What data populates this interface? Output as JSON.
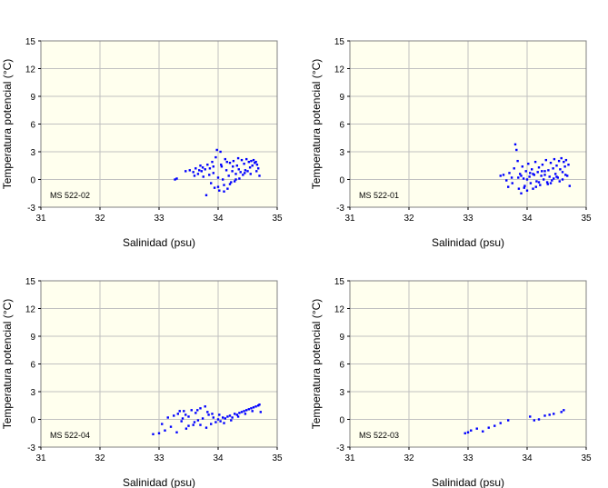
{
  "chart_data": [
    {
      "type": "scatter",
      "label": "MS 522-02",
      "xlabel": "Salinidad (psu)",
      "ylabel": "Temperatura potencial (°C)",
      "xlim": [
        31,
        35
      ],
      "ylim": [
        -3,
        15
      ],
      "xticks": [
        "31",
        "32",
        "33",
        "34",
        "35"
      ],
      "yticks": [
        "15",
        "12",
        "9",
        "6",
        "3",
        "0",
        "-3"
      ],
      "grid": true,
      "color": "#0000ff",
      "points": [
        [
          33.27,
          0.0
        ],
        [
          33.3,
          0.1
        ],
        [
          33.45,
          0.9
        ],
        [
          33.52,
          1.0
        ],
        [
          33.58,
          0.8
        ],
        [
          33.62,
          1.2
        ],
        [
          33.66,
          0.6
        ],
        [
          33.7,
          1.5
        ],
        [
          33.72,
          0.9
        ],
        [
          33.75,
          0.3
        ],
        [
          33.78,
          1.1
        ],
        [
          33.8,
          -1.7
        ],
        [
          33.82,
          1.6
        ],
        [
          33.85,
          0.5
        ],
        [
          33.88,
          -0.4
        ],
        [
          33.9,
          1.9
        ],
        [
          33.92,
          0.7
        ],
        [
          33.94,
          -0.9
        ],
        [
          33.96,
          2.4
        ],
        [
          33.98,
          3.2
        ],
        [
          34.0,
          0.2
        ],
        [
          34.02,
          -1.2
        ],
        [
          34.04,
          3.0
        ],
        [
          34.06,
          1.4
        ],
        [
          34.08,
          0.0
        ],
        [
          34.1,
          -0.6
        ],
        [
          34.12,
          2.2
        ],
        [
          34.14,
          1.0
        ],
        [
          34.16,
          -1.0
        ],
        [
          34.18,
          0.4
        ],
        [
          34.2,
          1.8
        ],
        [
          34.22,
          -0.3
        ],
        [
          34.24,
          0.9
        ],
        [
          34.26,
          2.0
        ],
        [
          34.28,
          -0.2
        ],
        [
          34.3,
          0.6
        ],
        [
          34.32,
          1.5
        ],
        [
          34.34,
          2.3
        ],
        [
          34.36,
          0.1
        ],
        [
          34.38,
          0.8
        ],
        [
          34.4,
          2.1
        ],
        [
          34.42,
          0.5
        ],
        [
          34.44,
          1.7
        ],
        [
          34.46,
          1.0
        ],
        [
          34.48,
          2.2
        ],
        [
          34.5,
          0.9
        ],
        [
          34.52,
          1.9
        ],
        [
          34.54,
          1.3
        ],
        [
          34.56,
          2.0
        ],
        [
          34.58,
          1.5
        ],
        [
          34.6,
          2.1
        ],
        [
          34.62,
          1.8
        ],
        [
          34.64,
          1.9
        ],
        [
          34.66,
          1.6
        ],
        [
          34.68,
          1.2
        ],
        [
          34.7,
          0.4
        ],
        [
          33.6,
          0.4
        ],
        [
          33.68,
          1.0
        ],
        [
          33.74,
          1.3
        ],
        [
          33.86,
          1.2
        ],
        [
          33.92,
          1.4
        ],
        [
          34.05,
          1.6
        ],
        [
          34.15,
          1.9
        ],
        [
          34.25,
          1.4
        ],
        [
          34.35,
          1.1
        ],
        [
          34.45,
          0.7
        ],
        [
          34.55,
          0.6
        ],
        [
          34.65,
          0.9
        ],
        [
          34.0,
          -0.8
        ],
        [
          34.1,
          -1.3
        ],
        [
          34.2,
          -0.5
        ],
        [
          34.3,
          0.0
        ]
      ]
    },
    {
      "type": "scatter",
      "label": "MS 522-01",
      "xlabel": "Salinidad (psu)",
      "ylabel": "Temperatura potencial (°C)",
      "xlim": [
        31,
        35
      ],
      "ylim": [
        -3,
        15
      ],
      "xticks": [
        "31",
        "32",
        "33",
        "34",
        "35"
      ],
      "yticks": [
        "15",
        "12",
        "9",
        "6",
        "3",
        "0",
        "-3"
      ],
      "grid": true,
      "color": "#0000ff",
      "points": [
        [
          33.55,
          0.4
        ],
        [
          33.6,
          0.5
        ],
        [
          33.65,
          -0.1
        ],
        [
          33.68,
          -0.8
        ],
        [
          33.7,
          0.7
        ],
        [
          33.74,
          0.2
        ],
        [
          33.78,
          1.2
        ],
        [
          33.8,
          3.8
        ],
        [
          33.82,
          3.2
        ],
        [
          33.84,
          2.0
        ],
        [
          33.86,
          -1.0
        ],
        [
          33.88,
          0.6
        ],
        [
          33.9,
          -1.5
        ],
        [
          33.92,
          1.4
        ],
        [
          33.94,
          0.1
        ],
        [
          33.96,
          -0.7
        ],
        [
          33.98,
          0.9
        ],
        [
          34.0,
          -1.2
        ],
        [
          34.02,
          1.7
        ],
        [
          34.04,
          0.3
        ],
        [
          34.06,
          -0.4
        ],
        [
          34.08,
          1.1
        ],
        [
          34.1,
          -1.0
        ],
        [
          34.12,
          0.5
        ],
        [
          34.14,
          1.9
        ],
        [
          34.16,
          -0.2
        ],
        [
          34.18,
          0.8
        ],
        [
          34.2,
          1.3
        ],
        [
          34.22,
          -0.6
        ],
        [
          34.24,
          0.4
        ],
        [
          34.26,
          1.6
        ],
        [
          34.28,
          0.0
        ],
        [
          34.3,
          0.9
        ],
        [
          34.32,
          2.1
        ],
        [
          34.34,
          -0.3
        ],
        [
          34.36,
          1.0
        ],
        [
          34.38,
          0.3
        ],
        [
          34.4,
          1.8
        ],
        [
          34.42,
          -0.1
        ],
        [
          34.44,
          1.2
        ],
        [
          34.46,
          2.2
        ],
        [
          34.48,
          0.6
        ],
        [
          34.5,
          1.5
        ],
        [
          34.52,
          0.2
        ],
        [
          34.54,
          2.0
        ],
        [
          34.56,
          1.1
        ],
        [
          34.58,
          2.3
        ],
        [
          34.6,
          0.8
        ],
        [
          34.62,
          1.9
        ],
        [
          34.64,
          1.4
        ],
        [
          34.66,
          2.1
        ],
        [
          34.68,
          0.4
        ],
        [
          34.7,
          1.6
        ],
        [
          34.72,
          -0.7
        ],
        [
          33.75,
          -0.4
        ],
        [
          33.85,
          0.2
        ],
        [
          33.95,
          -0.9
        ],
        [
          34.05,
          0.7
        ],
        [
          34.15,
          -0.8
        ],
        [
          34.25,
          0.9
        ],
        [
          34.35,
          -0.5
        ],
        [
          34.45,
          0.1
        ],
        [
          34.55,
          -0.2
        ],
        [
          34.65,
          0.5
        ],
        [
          33.9,
          0.4
        ],
        [
          34.0,
          0.0
        ],
        [
          34.1,
          0.6
        ],
        [
          34.2,
          -0.3
        ],
        [
          34.3,
          0.5
        ],
        [
          34.4,
          -0.4
        ],
        [
          34.5,
          0.3
        ],
        [
          34.6,
          0.0
        ]
      ]
    },
    {
      "type": "scatter",
      "label": "MS 522-04",
      "xlabel": "Salinidad (psu)",
      "ylabel": "Temperatura potencial (°C)",
      "xlim": [
        31,
        35
      ],
      "ylim": [
        -3,
        15
      ],
      "xticks": [
        "31",
        "32",
        "33",
        "34",
        "35"
      ],
      "yticks": [
        "15",
        "12",
        "9",
        "6",
        "3",
        "0",
        "-3"
      ],
      "grid": true,
      "color": "#0000ff",
      "points": [
        [
          32.9,
          -1.6
        ],
        [
          33.0,
          -1.5
        ],
        [
          33.05,
          -0.5
        ],
        [
          33.1,
          -1.2
        ],
        [
          33.15,
          0.2
        ],
        [
          33.2,
          -0.8
        ],
        [
          33.25,
          0.4
        ],
        [
          33.3,
          -1.4
        ],
        [
          33.32,
          0.6
        ],
        [
          33.38,
          -0.2
        ],
        [
          33.42,
          0.9
        ],
        [
          33.46,
          -1.0
        ],
        [
          33.5,
          0.3
        ],
        [
          33.55,
          1.0
        ],
        [
          33.58,
          -0.6
        ],
        [
          33.62,
          0.7
        ],
        [
          33.66,
          -0.1
        ],
        [
          33.7,
          1.2
        ],
        [
          33.74,
          0.1
        ],
        [
          33.78,
          1.4
        ],
        [
          33.8,
          -0.9
        ],
        [
          33.84,
          0.5
        ],
        [
          33.88,
          -0.5
        ],
        [
          33.92,
          0.2
        ],
        [
          33.96,
          -0.3
        ],
        [
          34.0,
          0.0
        ],
        [
          34.04,
          -0.2
        ],
        [
          34.08,
          0.2
        ],
        [
          34.12,
          0.1
        ],
        [
          34.16,
          0.3
        ],
        [
          34.2,
          0.4
        ],
        [
          34.24,
          0.2
        ],
        [
          34.28,
          0.6
        ],
        [
          34.32,
          0.5
        ],
        [
          34.36,
          0.7
        ],
        [
          34.4,
          0.8
        ],
        [
          34.44,
          0.9
        ],
        [
          34.48,
          1.0
        ],
        [
          34.52,
          1.1
        ],
        [
          34.56,
          1.2
        ],
        [
          34.6,
          1.3
        ],
        [
          34.64,
          1.4
        ],
        [
          34.68,
          1.5
        ],
        [
          34.7,
          1.6
        ],
        [
          34.72,
          0.8
        ],
        [
          33.4,
          0.1
        ],
        [
          33.5,
          -0.7
        ],
        [
          33.6,
          -0.3
        ],
        [
          33.7,
          -0.6
        ],
        [
          33.82,
          0.8
        ],
        [
          33.9,
          0.6
        ],
        [
          34.02,
          0.5
        ],
        [
          34.1,
          -0.4
        ],
        [
          33.35,
          0.9
        ],
        [
          33.45,
          0.5
        ],
        [
          33.65,
          1.0
        ],
        [
          34.22,
          -0.1
        ],
        [
          34.34,
          0.3
        ],
        [
          34.46,
          0.6
        ],
        [
          34.58,
          0.9
        ]
      ]
    },
    {
      "type": "scatter",
      "label": "MS 522-03",
      "xlabel": "Salinidad (psu)",
      "ylabel": "Temperatura potencial (°C)",
      "xlim": [
        31,
        35
      ],
      "ylim": [
        -3,
        15
      ],
      "xticks": [
        "31",
        "32",
        "33",
        "34",
        "35"
      ],
      "yticks": [
        "15",
        "12",
        "9",
        "6",
        "3",
        "0",
        "-3"
      ],
      "grid": true,
      "color": "#0000ff",
      "points": [
        [
          32.95,
          -1.5
        ],
        [
          33.0,
          -1.4
        ],
        [
          33.05,
          -1.2
        ],
        [
          33.15,
          -1.0
        ],
        [
          33.25,
          -1.3
        ],
        [
          33.35,
          -0.9
        ],
        [
          33.45,
          -0.7
        ],
        [
          33.55,
          -0.4
        ],
        [
          33.68,
          -0.1
        ],
        [
          34.05,
          0.3
        ],
        [
          34.12,
          -0.1
        ],
        [
          34.2,
          0.0
        ],
        [
          34.3,
          0.4
        ],
        [
          34.38,
          0.5
        ],
        [
          34.45,
          0.6
        ],
        [
          34.58,
          0.8
        ],
        [
          34.62,
          1.0
        ]
      ]
    }
  ]
}
